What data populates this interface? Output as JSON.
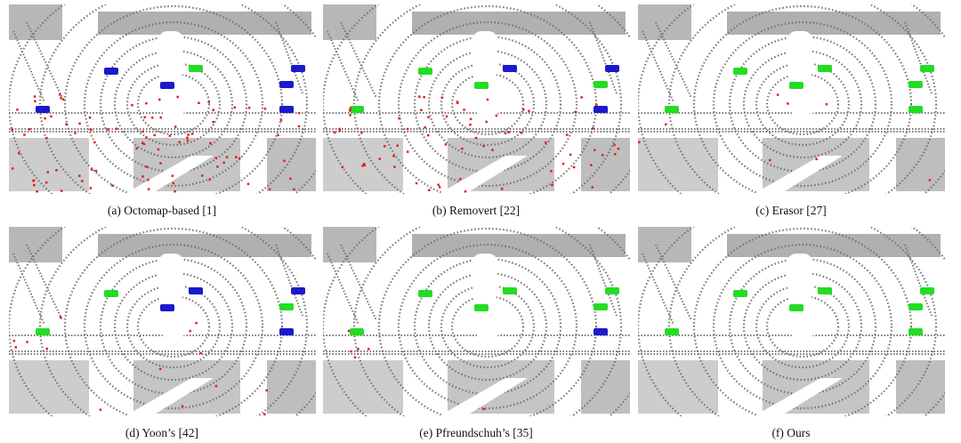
{
  "figure": {
    "panels": [
      {
        "caption": "(a) Octomap-based [1]"
      },
      {
        "caption": "(b) Removert [22]"
      },
      {
        "caption": "(c) Erasor [27]"
      },
      {
        "caption": "(d) Yoon’s [42]"
      },
      {
        "caption": "(e) Pfreundschuh’s [35]"
      },
      {
        "caption": "(f) Ours"
      }
    ]
  }
}
